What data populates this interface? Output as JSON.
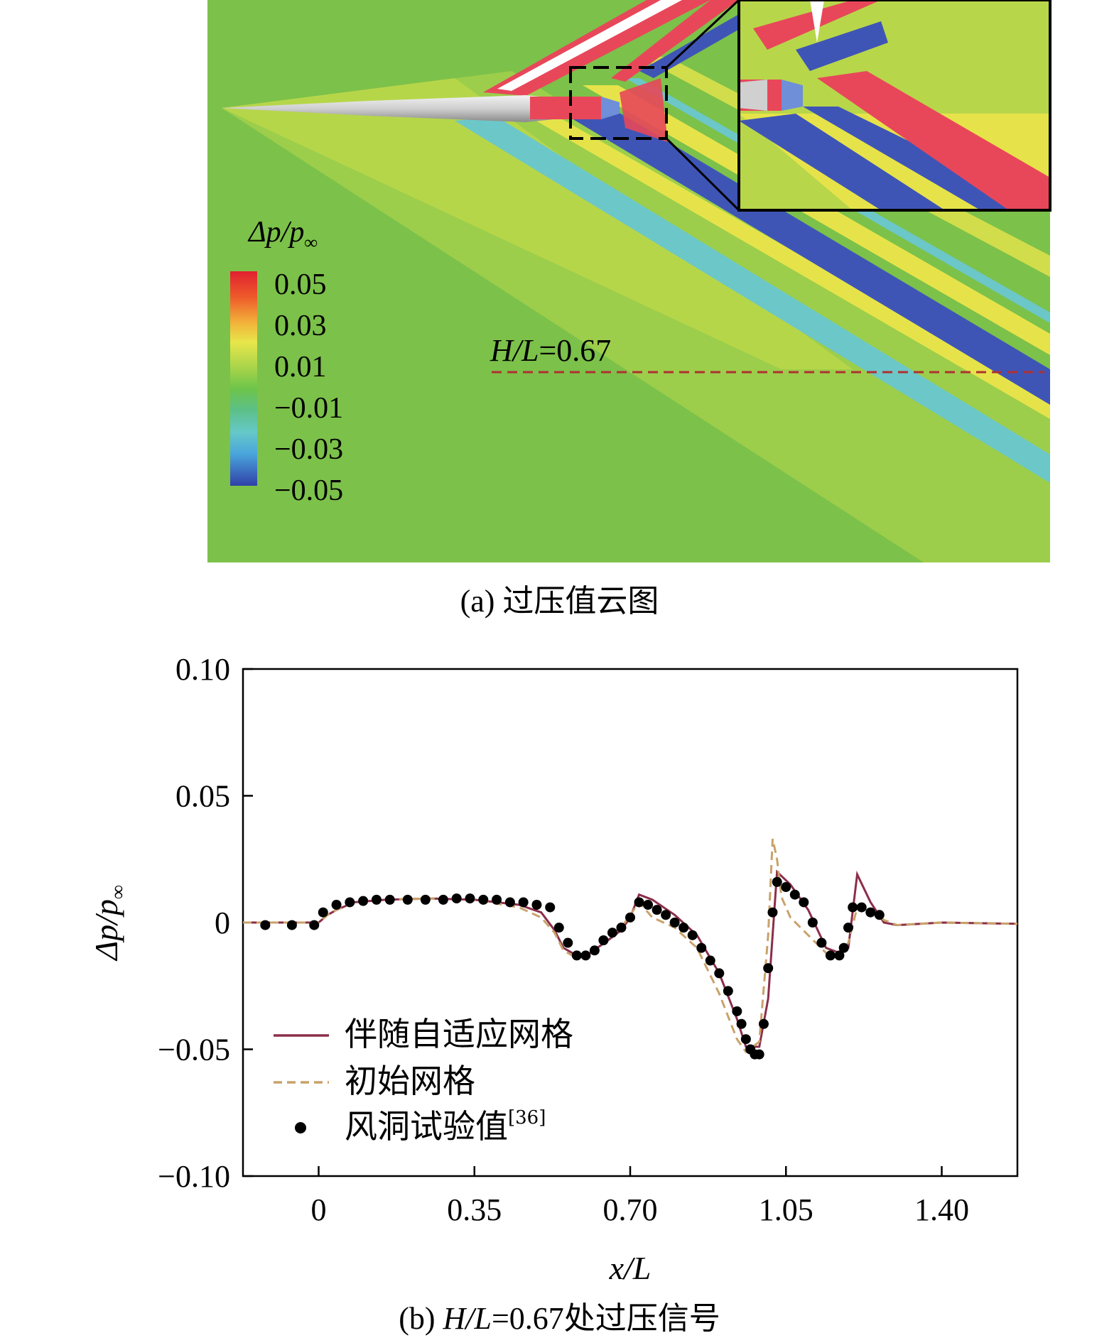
{
  "figure_a": {
    "caption": "(a) 过压值云图",
    "legend_title_base": "Δp/p",
    "legend_title_sub": "∞",
    "legend_ticks": [
      "0.05",
      "0.03",
      "0.01",
      "−0.01",
      "−0.03",
      "−0.05"
    ],
    "line_label_var": "H/L",
    "line_label_value": "=0.67",
    "colors": {
      "background": "#7cc14a",
      "high": "#e8475a",
      "yellow": "#e6e34a",
      "cyan": "#6cc7c8",
      "low": "#3f55b6",
      "guide_line": "#b03030"
    }
  },
  "figure_b": {
    "caption_prefix": "(b) ",
    "caption_var": "H/L",
    "caption_suffix": "=0.67处过压信号"
  },
  "chart_data": {
    "type": "line",
    "xlabel": "x/L",
    "ylabel_base": "Δp/p",
    "ylabel_sub": "∞",
    "xlim": [
      -0.17,
      1.57
    ],
    "ylim": [
      -0.1,
      0.1
    ],
    "x_ticks": [
      0,
      0.35,
      0.7,
      1.05,
      1.4
    ],
    "x_tick_labels": [
      "0",
      "0.35",
      "0.70",
      "1.05",
      "1.40"
    ],
    "y_ticks": [
      0.1,
      0.05,
      0,
      -0.05,
      -0.1
    ],
    "y_tick_labels": [
      "0.10",
      "0.05",
      "0",
      "−0.05",
      "−0.10"
    ],
    "series": [
      {
        "name": "伴随自适应网格",
        "style": "solid",
        "color": "#8b2e4a",
        "x": [
          -0.17,
          -0.08,
          0.0,
          0.02,
          0.04,
          0.08,
          0.15,
          0.25,
          0.35,
          0.45,
          0.5,
          0.53,
          0.55,
          0.58,
          0.61,
          0.65,
          0.68,
          0.7,
          0.72,
          0.75,
          0.8,
          0.85,
          0.9,
          0.94,
          0.96,
          0.99,
          1.01,
          1.03,
          1.06,
          1.1,
          1.14,
          1.17,
          1.19,
          1.21,
          1.24,
          1.27,
          1.3,
          1.4,
          1.57
        ],
        "values": [
          0.0,
          0.0,
          0.0,
          0.003,
          0.005,
          0.008,
          0.009,
          0.0095,
          0.009,
          0.007,
          0.004,
          -0.003,
          -0.01,
          -0.013,
          -0.012,
          -0.007,
          -0.003,
          0.002,
          0.011,
          0.009,
          0.003,
          -0.005,
          -0.02,
          -0.038,
          -0.049,
          -0.049,
          -0.03,
          0.02,
          0.015,
          0.005,
          -0.01,
          -0.012,
          -0.01,
          0.019,
          0.008,
          0.0,
          -0.001,
          0.0,
          -0.0005
        ]
      },
      {
        "name": "初始网格",
        "style": "dashed",
        "color": "#c9a26a",
        "x": [
          -0.17,
          -0.08,
          0.0,
          0.02,
          0.04,
          0.08,
          0.15,
          0.25,
          0.35,
          0.45,
          0.5,
          0.53,
          0.55,
          0.58,
          0.61,
          0.65,
          0.68,
          0.7,
          0.72,
          0.75,
          0.8,
          0.85,
          0.9,
          0.94,
          0.96,
          0.99,
          1.01,
          1.02,
          1.03,
          1.04,
          1.06,
          1.1,
          1.14,
          1.17,
          1.19,
          1.21,
          1.24,
          1.27,
          1.3,
          1.4,
          1.57
        ],
        "values": [
          0.0,
          0.0,
          0.0,
          0.003,
          0.005,
          0.008,
          0.009,
          0.0095,
          0.009,
          0.006,
          0.002,
          -0.004,
          -0.011,
          -0.014,
          -0.012,
          -0.006,
          -0.002,
          0.003,
          0.008,
          0.002,
          -0.002,
          -0.01,
          -0.028,
          -0.046,
          -0.051,
          -0.047,
          -0.005,
          0.033,
          0.025,
          0.01,
          0.002,
          -0.005,
          -0.012,
          -0.012,
          -0.008,
          0.006,
          0.005,
          0.001,
          -0.001,
          0.0,
          -0.0005
        ]
      },
      {
        "name": "风洞试验值",
        "name_sup": "[36]",
        "style": "markers",
        "color": "#000000",
        "x": [
          -0.12,
          -0.06,
          -0.01,
          0.01,
          0.04,
          0.07,
          0.1,
          0.13,
          0.16,
          0.2,
          0.24,
          0.28,
          0.31,
          0.34,
          0.37,
          0.4,
          0.43,
          0.46,
          0.49,
          0.52,
          0.54,
          0.56,
          0.58,
          0.6,
          0.62,
          0.64,
          0.66,
          0.68,
          0.7,
          0.72,
          0.74,
          0.76,
          0.78,
          0.8,
          0.82,
          0.84,
          0.86,
          0.88,
          0.9,
          0.92,
          0.94,
          0.95,
          0.96,
          0.97,
          0.98,
          0.99,
          1.0,
          1.01,
          1.02,
          1.03,
          1.05,
          1.07,
          1.09,
          1.11,
          1.13,
          1.15,
          1.17,
          1.18,
          1.19,
          1.2,
          1.22,
          1.24,
          1.26
        ],
        "values": [
          -0.001,
          -0.001,
          -0.001,
          0.004,
          0.007,
          0.008,
          0.0085,
          0.009,
          0.009,
          0.009,
          0.009,
          0.009,
          0.0095,
          0.0095,
          0.009,
          0.009,
          0.008,
          0.008,
          0.007,
          0.006,
          -0.002,
          -0.008,
          -0.013,
          -0.013,
          -0.011,
          -0.007,
          -0.004,
          -0.002,
          0.002,
          0.008,
          0.007,
          0.005,
          0.003,
          0.0,
          -0.002,
          -0.005,
          -0.01,
          -0.015,
          -0.02,
          -0.027,
          -0.035,
          -0.04,
          -0.046,
          -0.05,
          -0.052,
          -0.052,
          -0.04,
          -0.018,
          0.004,
          0.016,
          0.014,
          0.011,
          0.008,
          0.0,
          -0.008,
          -0.013,
          -0.013,
          -0.01,
          -0.002,
          0.006,
          0.006,
          0.004,
          0.003
        ]
      }
    ]
  }
}
